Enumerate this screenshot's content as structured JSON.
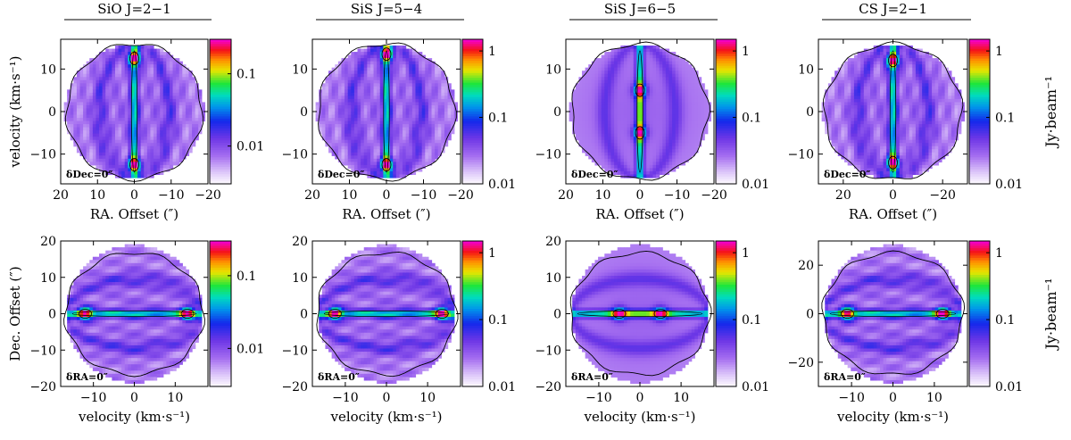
{
  "chart_data": {
    "type": "heatmap",
    "colorbar_unit": "Jy·beam⁻¹",
    "rows": [
      {
        "name": "position-velocity along RA",
        "xlabel": "RA. Offset (″)",
        "ylabel": "velocity (km·s⁻¹)",
        "ylim": [
          -17,
          17
        ],
        "yticks": [
          -10,
          0,
          10
        ],
        "panels": [
          {
            "title": "SiO J=2−1",
            "xlim": [
              20,
              -20
            ],
            "xticks": [
              20,
              10,
              0,
              -10,
              -20
            ],
            "cbar_ticks": [
              0.01,
              0.1
            ],
            "cbar_range": [
              0.003,
              0.3
            ],
            "position_label": "δDec=0″",
            "tail": 2,
            "peaks": [
              [
                0,
                12.5
              ],
              [
                0,
                -12.5
              ]
            ],
            "smooth": false
          },
          {
            "title": "SiS J=5−4",
            "xlim": [
              20,
              -20
            ],
            "xticks": [
              20,
              10,
              0,
              -10,
              -20
            ],
            "cbar_ticks": [
              0.01,
              0.1,
              1
            ],
            "cbar_range": [
              0.01,
              1.5
            ],
            "position_label": "δDec=0″",
            "tail": 1,
            "peaks": [
              [
                0,
                13.5
              ],
              [
                0,
                -12.5
              ]
            ],
            "smooth": false
          },
          {
            "title": "SiS J=6−5",
            "xlim": [
              20,
              -20
            ],
            "xticks": [
              20,
              10,
              0,
              -10,
              -20
            ],
            "cbar_ticks": [
              0.01,
              0.1,
              1
            ],
            "cbar_range": [
              0.01,
              1.5
            ],
            "position_label": "δDec=0″",
            "tail": 1,
            "peaks": [
              [
                0,
                5
              ],
              [
                0,
                -5
              ]
            ],
            "smooth": true
          },
          {
            "title": "CS J=2−1",
            "xlim": [
              30,
              -30
            ],
            "xticks": [
              20,
              0,
              -20
            ],
            "cbar_ticks": [
              0.01,
              0.1,
              1
            ],
            "cbar_range": [
              0.01,
              1.5
            ],
            "position_label": "δDec=0″",
            "tail": 3,
            "peaks": [
              [
                0,
                12
              ],
              [
                0,
                -12
              ]
            ],
            "smooth": false
          }
        ]
      },
      {
        "name": "position-velocity along Dec",
        "xlabel": "velocity (km·s⁻¹)",
        "ylabel": "Dec. Offset (″)",
        "xlim": [
          -18,
          18
        ],
        "xticks": [
          -10,
          0,
          10
        ],
        "panels": [
          {
            "title": "",
            "ylim": [
              -20,
              20
            ],
            "yticks": [
              -20,
              -10,
              0,
              10,
              20
            ],
            "cbar_ticks": [
              0.01,
              0.1
            ],
            "cbar_range": [
              0.003,
              0.3
            ],
            "position_label": "δRA=0″",
            "tail": 2,
            "peaks": [
              [
                13,
                0
              ],
              [
                -12,
                0
              ]
            ],
            "smooth": false
          },
          {
            "title": "",
            "ylim": [
              -20,
              20
            ],
            "yticks": [
              -20,
              -10,
              0,
              10,
              20
            ],
            "cbar_ticks": [
              0.01,
              0.1,
              1
            ],
            "cbar_range": [
              0.01,
              1.5
            ],
            "position_label": "δRA=0″",
            "tail": 1,
            "peaks": [
              [
                -12.5,
                0
              ],
              [
                13.5,
                0
              ]
            ],
            "smooth": false
          },
          {
            "title": "",
            "ylim": [
              -20,
              20
            ],
            "yticks": [
              -20,
              -10,
              0,
              10,
              20
            ],
            "cbar_ticks": [
              0.01,
              0.1,
              1
            ],
            "cbar_range": [
              0.01,
              1.5
            ],
            "position_label": "δRA=0″",
            "tail": 1,
            "peaks": [
              [
                -5,
                0
              ],
              [
                5,
                0
              ]
            ],
            "smooth": true
          },
          {
            "title": "",
            "ylim": [
              -30,
              30
            ],
            "yticks": [
              -20,
              0,
              20
            ],
            "cbar_ticks": [
              0.01,
              0.1,
              1
            ],
            "cbar_range": [
              0.01,
              1.5
            ],
            "position_label": "δRA=0″",
            "tail": 3,
            "peaks": [
              [
                12,
                0
              ],
              [
                -11,
                0
              ]
            ],
            "smooth": false
          }
        ]
      }
    ]
  }
}
